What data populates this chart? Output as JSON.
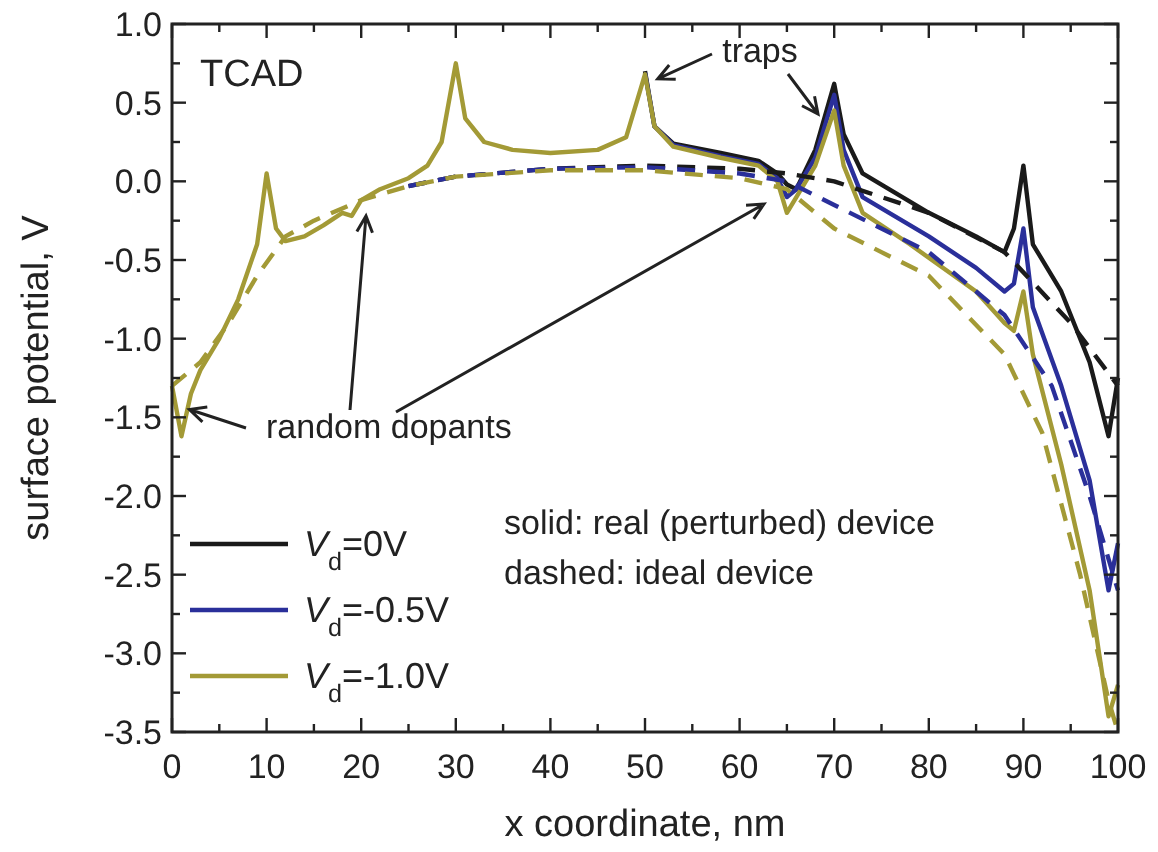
{
  "chart_data": {
    "type": "line",
    "xlabel": "x coordinate, nm",
    "ylabel": "surface potential, V",
    "legend": "bottom left",
    "line_style": "solid",
    "xlim": [
      0,
      100
    ],
    "ylim": [
      -3.5,
      1.0
    ],
    "xticks": [
      0,
      {
        "value": 5,
        "label": null
      },
      10,
      {
        "value": 15,
        "label": null
      },
      20,
      {
        "value": 25,
        "label": null
      },
      30,
      {
        "value": 35,
        "label": null
      },
      40,
      {
        "value": 45,
        "label": null
      },
      50,
      {
        "value": 55,
        "label": null
      },
      60,
      {
        "value": 65,
        "label": null
      },
      70,
      {
        "value": 75,
        "label": null
      },
      80,
      {
        "value": 85,
        "label": null
      },
      90,
      {
        "value": 95,
        "label": null
      },
      100
    ],
    "yticks": [
      {
        "value": 1,
        "label": "1.0"
      },
      {
        "value": 0.75,
        "label": null
      },
      {
        "value": 0.5,
        "label": "0.5"
      },
      {
        "value": 0.25,
        "label": null
      },
      {
        "value": 0,
        "label": "0.0"
      },
      {
        "value": -0.25,
        "label": null
      },
      {
        "value": -0.5,
        "label": "-0.5"
      },
      {
        "value": -0.75,
        "label": null
      },
      {
        "value": -1,
        "label": "-1.0"
      },
      {
        "value": -1.25,
        "label": null
      },
      {
        "value": -1.5,
        "label": "-1.5"
      },
      {
        "value": -1.75,
        "label": null
      },
      {
        "value": -2,
        "label": "-2.0"
      },
      {
        "value": -2.25,
        "label": null
      },
      {
        "value": -2.5,
        "label": "-2.5"
      },
      {
        "value": -2.75,
        "label": null
      },
      {
        "value": -3,
        "label": "-3.0"
      },
      {
        "value": -3.25,
        "label": null
      },
      {
        "value": -3.5,
        "label": "-3.5"
      }
    ],
    "annotations": [
      "TCAD",
      {
        "text": "traps",
        "x": 50.5,
        "y": 0.6
      },
      {
        "text": "random dopants",
        "x": 1,
        "y": -1.45
      },
      "solid: real (perturbed) device",
      "dashed: ideal device"
    ],
    "series": [
      {
        "name": "V$_{d}$=0V",
        "color": "#1a1a1a",
        "x": [
          50,
          51,
          53,
          58,
          62,
          64,
          65,
          66,
          68,
          70,
          71,
          73,
          80,
          85,
          88,
          89,
          90,
          91,
          94,
          97,
          99,
          100
        ],
        "values": [
          0.7,
          0.35,
          0.24,
          0.18,
          0.13,
          0.05,
          -0.02,
          -0.05,
          0.2,
          0.62,
          0.3,
          0.05,
          -0.2,
          -0.35,
          -0.45,
          -0.3,
          0.1,
          -0.4,
          -0.7,
          -1.15,
          -1.62,
          -1.25
        ]
      },
      {
        "name": "V$_{d}$=-0.5V",
        "color": "#2a2f9a",
        "x": [
          50,
          51,
          53,
          58,
          62,
          64,
          65,
          66,
          68,
          70,
          71,
          73,
          80,
          85,
          88,
          89,
          90,
          91,
          94,
          97,
          99,
          100
        ],
        "values": [
          0.69,
          0.35,
          0.23,
          0.16,
          0.11,
          0.02,
          -0.1,
          -0.05,
          0.15,
          0.55,
          0.2,
          -0.1,
          -0.35,
          -0.55,
          -0.7,
          -0.65,
          -0.3,
          -0.8,
          -1.3,
          -1.9,
          -2.6,
          -2.3
        ]
      },
      {
        "name": "V$_{d}$=-1.0V",
        "color": "#a39a36",
        "x": [
          0,
          1,
          2,
          3,
          5,
          7,
          9,
          10,
          11,
          12,
          14,
          16,
          18,
          19,
          20,
          22,
          25,
          27,
          28.5,
          30,
          31,
          33,
          36,
          40,
          45,
          48,
          50,
          51,
          53,
          58,
          62,
          64,
          65,
          66,
          68,
          70,
          71,
          73,
          78,
          85,
          88,
          89,
          90,
          91,
          94,
          97,
          99,
          100
        ],
        "values": [
          -1.3,
          -1.62,
          -1.35,
          -1.2,
          -1.0,
          -0.75,
          -0.4,
          0.05,
          -0.3,
          -0.38,
          -0.35,
          -0.28,
          -0.2,
          -0.22,
          -0.12,
          -0.05,
          0.02,
          0.1,
          0.25,
          0.75,
          0.4,
          0.25,
          0.2,
          0.18,
          0.2,
          0.28,
          0.68,
          0.35,
          0.22,
          0.15,
          0.1,
          0.0,
          -0.2,
          -0.1,
          0.1,
          0.45,
          0.1,
          -0.2,
          -0.4,
          -0.7,
          -0.9,
          -0.95,
          -0.7,
          -1.1,
          -1.8,
          -2.6,
          -3.4,
          -3.2
        ]
      },
      {
        "color": "#1a1a1a",
        "line_style": "dashed",
        "x": [
          25,
          30,
          40,
          50,
          60,
          65,
          70,
          80,
          88,
          95,
          100
        ],
        "values": [
          -0.03,
          0.03,
          0.08,
          0.1,
          0.08,
          0.05,
          0.0,
          -0.2,
          -0.45,
          -0.9,
          -1.3
        ]
      },
      {
        "color": "#2a2f9a",
        "line_style": "dashed",
        "x": [
          25,
          30,
          40,
          50,
          60,
          65,
          70,
          80,
          88,
          93,
          97,
          100
        ],
        "values": [
          -0.03,
          0.03,
          0.08,
          0.09,
          0.05,
          0.0,
          -0.15,
          -0.45,
          -0.85,
          -1.3,
          -2.0,
          -2.6
        ]
      },
      {
        "color": "#a39a36",
        "line_style": "dashed",
        "x": [
          0,
          3,
          6,
          9,
          12,
          15,
          20,
          25,
          30,
          40,
          50,
          60,
          65,
          70,
          80,
          88,
          92,
          96,
          99,
          100
        ],
        "values": [
          -1.3,
          -1.15,
          -0.9,
          -0.6,
          -0.35,
          -0.25,
          -0.12,
          -0.03,
          0.03,
          0.07,
          0.07,
          0.02,
          -0.05,
          -0.3,
          -0.6,
          -1.1,
          -1.6,
          -2.5,
          -3.3,
          -3.5
        ]
      }
    ]
  }
}
